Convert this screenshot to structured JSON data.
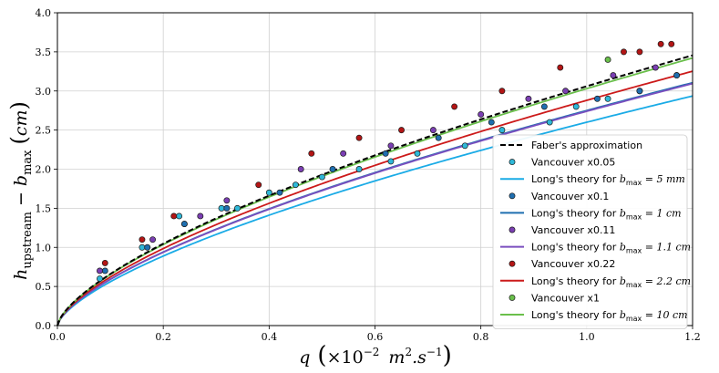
{
  "chart_data": {
    "type": "line",
    "title": "",
    "xlabel": "q (×10⁻² m².s⁻¹)",
    "ylabel": "h_upstream − b_max (cm)",
    "xlim": [
      0.0,
      1.2
    ],
    "ylim": [
      0.0,
      4.0
    ],
    "xticks": [
      "0.0",
      "0.2",
      "0.4",
      "0.6",
      "0.8",
      "1.0",
      "1.2"
    ],
    "yticks": [
      "0.0",
      "0.5",
      "1.0",
      "1.5",
      "2.0",
      "2.5",
      "3.0",
      "3.5",
      "4.0"
    ],
    "grid": true,
    "legend_position": "lower-right",
    "series": [
      {
        "name": "Faber's approximation",
        "kind": "line",
        "style": "dashed",
        "color": "#000000",
        "k": 3.06
      },
      {
        "name": "Vancouver x0.05",
        "kind": "scatter",
        "color": "#2fb8d8",
        "points": [
          [
            0.08,
            0.6
          ],
          [
            0.16,
            1.0
          ],
          [
            0.23,
            1.4
          ],
          [
            0.24,
            1.3
          ],
          [
            0.31,
            1.5
          ],
          [
            0.34,
            1.5
          ],
          [
            0.4,
            1.7
          ],
          [
            0.45,
            1.8
          ],
          [
            0.5,
            1.9
          ],
          [
            0.57,
            2.0
          ],
          [
            0.63,
            2.1
          ],
          [
            0.68,
            2.2
          ],
          [
            0.77,
            2.3
          ],
          [
            0.84,
            2.5
          ],
          [
            0.93,
            2.6
          ],
          [
            0.98,
            2.8
          ],
          [
            1.04,
            2.9
          ],
          [
            1.1,
            3.0
          ],
          [
            1.17,
            3.2
          ]
        ]
      },
      {
        "name": "Long's theory for b_max = 5 mm",
        "kind": "line",
        "style": "solid",
        "color": "#1aabe6",
        "k": 2.6
      },
      {
        "name": "Vancouver x0.1",
        "kind": "scatter",
        "color": "#1f6fb0",
        "points": [
          [
            0.09,
            0.7
          ],
          [
            0.17,
            1.0
          ],
          [
            0.24,
            1.3
          ],
          [
            0.32,
            1.5
          ],
          [
            0.42,
            1.7
          ],
          [
            0.52,
            2.0
          ],
          [
            0.62,
            2.2
          ],
          [
            0.72,
            2.4
          ],
          [
            0.82,
            2.6
          ],
          [
            0.92,
            2.8
          ],
          [
            1.02,
            2.9
          ],
          [
            1.1,
            3.0
          ],
          [
            1.17,
            3.2
          ]
        ]
      },
      {
        "name": "Long's theory for b_max = 1 cm",
        "kind": "line",
        "style": "solid",
        "color": "#1f6fb0",
        "k": 2.75
      },
      {
        "name": "Vancouver x0.11",
        "kind": "scatter",
        "color": "#7b3fb3",
        "points": [
          [
            0.08,
            0.7
          ],
          [
            0.18,
            1.1
          ],
          [
            0.27,
            1.4
          ],
          [
            0.32,
            1.6
          ],
          [
            0.46,
            2.0
          ],
          [
            0.54,
            2.2
          ],
          [
            0.63,
            2.3
          ],
          [
            0.71,
            2.5
          ],
          [
            0.8,
            2.7
          ],
          [
            0.89,
            2.9
          ],
          [
            0.96,
            3.0
          ],
          [
            1.05,
            3.2
          ],
          [
            1.13,
            3.3
          ]
        ]
      },
      {
        "name": "Long's theory for b_max = 1.1 cm",
        "kind": "line",
        "style": "solid",
        "color": "#7b4fbf",
        "k": 2.74
      },
      {
        "name": "Vancouver x0.22",
        "kind": "scatter",
        "color": "#b31515",
        "points": [
          [
            0.09,
            0.8
          ],
          [
            0.16,
            1.1
          ],
          [
            0.22,
            1.4
          ],
          [
            0.38,
            1.8
          ],
          [
            0.48,
            2.2
          ],
          [
            0.57,
            2.4
          ],
          [
            0.65,
            2.5
          ],
          [
            0.75,
            2.8
          ],
          [
            0.84,
            3.0
          ],
          [
            0.95,
            3.3
          ],
          [
            1.07,
            3.5
          ],
          [
            1.1,
            3.5
          ],
          [
            1.14,
            3.6
          ],
          [
            1.16,
            3.6
          ]
        ]
      },
      {
        "name": "Long's theory for b_max = 2.2 cm",
        "kind": "line",
        "style": "solid",
        "color": "#cc1a1a",
        "k": 2.88
      },
      {
        "name": "Vancouver x1",
        "kind": "scatter",
        "color": "#6abf4b",
        "points": [
          [
            1.04,
            3.4
          ]
        ]
      },
      {
        "name": "Long's theory for b_max = 10 cm",
        "kind": "line",
        "style": "solid",
        "color": "#6abf4b",
        "k": 3.03
      }
    ],
    "legend_labels": [
      {
        "text": "Faber's approximation"
      },
      {
        "text": "Vancouver x0.05"
      },
      {
        "text": "Long's theory for ",
        "math": "b",
        "sub": "max",
        "rest": " = 5 mm"
      },
      {
        "text": "Vancouver x0.1"
      },
      {
        "text": "Long's theory for ",
        "math": "b",
        "sub": "max",
        "rest": " = 1 cm"
      },
      {
        "text": "Vancouver x0.11"
      },
      {
        "text": "Long's theory for ",
        "math": "b",
        "sub": "max",
        "rest": " = 1.1 cm"
      },
      {
        "text": "Vancouver x0.22"
      },
      {
        "text": "Long's theory for ",
        "math": "b",
        "sub": "max",
        "rest": " = 2.2 cm"
      },
      {
        "text": "Vancouver x1"
      },
      {
        "text": "Long's theory for ",
        "math": "b",
        "sub": "max",
        "rest": " = 10 cm"
      }
    ]
  }
}
